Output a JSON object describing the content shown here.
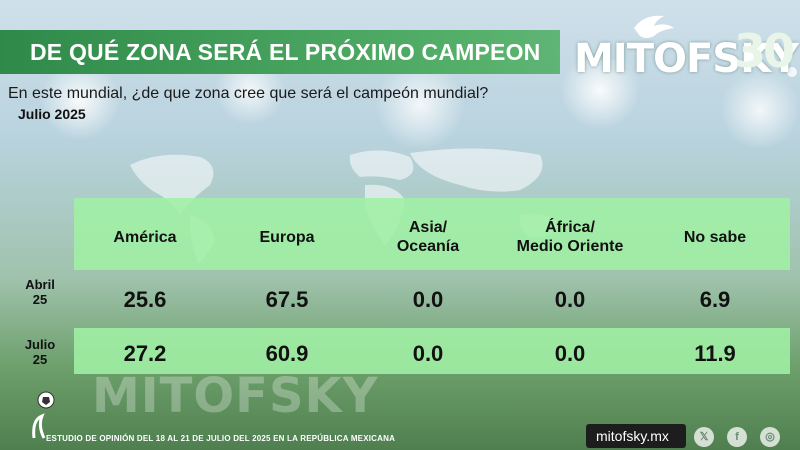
{
  "header": {
    "title": "DE QUÉ ZONA SERÁ EL PRÓXIMO CAMPEON",
    "logo_text": "MITOFSKY",
    "logo_number": "30"
  },
  "question": "En este mundial, ¿de que zona cree que será el campeón mundial?",
  "date_label": "Julio 2025",
  "watermark": "MITOFSKY",
  "footer": {
    "study_text": "ESTUDIO DE OPINIÓN DEL 18 AL 21 DE JULIO DEL 2025 EN LA REPÚBLICA MEXICANA",
    "site": "mitofsky.mx",
    "social_icons": [
      "x-icon",
      "facebook-icon",
      "instagram-icon"
    ]
  },
  "colors": {
    "title_bar": "#3a9a55",
    "table_band": "#a0f0a5",
    "footer_box": "#1d1d1d"
  },
  "chart_data": {
    "type": "table",
    "columns": [
      {
        "line1": "América",
        "line2": ""
      },
      {
        "line1": "Europa",
        "line2": ""
      },
      {
        "line1": "Asia/",
        "line2": "Oceanía"
      },
      {
        "line1": "África/",
        "line2": "Medio Oriente"
      },
      {
        "line1": "No sabe",
        "line2": ""
      }
    ],
    "rows": [
      {
        "label1": "Abril",
        "label2": "25",
        "values": [
          "25.6",
          "67.5",
          "0.0",
          "0.0",
          "6.9"
        ]
      },
      {
        "label1": "Julio",
        "label2": "25",
        "values": [
          "27.2",
          "60.9",
          "0.0",
          "0.0",
          "11.9"
        ]
      }
    ]
  }
}
